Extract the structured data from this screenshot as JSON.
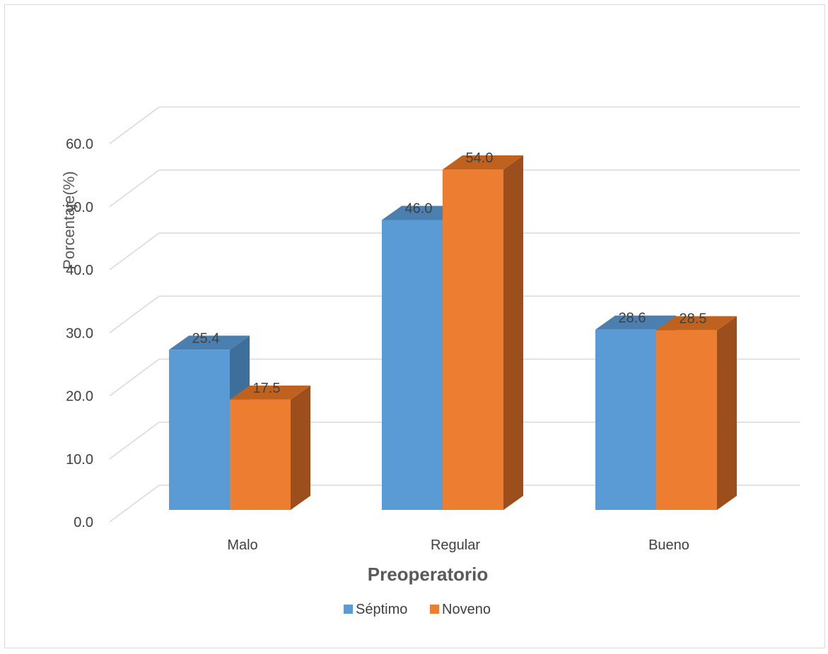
{
  "chart_data": {
    "type": "bar",
    "title": "",
    "xlabel": "Preoperatorio",
    "ylabel": "Porcentaje(%)",
    "categories": [
      "Malo",
      "Regular",
      "Bueno"
    ],
    "series": [
      {
        "name": "Séptimo",
        "values": [
          25.4,
          46.0,
          28.6
        ],
        "value_labels": [
          "25.4",
          "46.0",
          "28.6"
        ],
        "color": "#5b9bd5",
        "side_color": "#3e6f9a",
        "top_color": "#4a7fb0"
      },
      {
        "name": "Noveno",
        "values": [
          17.5,
          54.0,
          28.5
        ],
        "value_labels": [
          "17.5",
          "54.0",
          "28.5"
        ],
        "color": "#ed7d31",
        "side_color": "#9c4f1c",
        "top_color": "#c0621f"
      }
    ],
    "ylim": [
      0,
      60
    ],
    "yticks": [
      "0.0",
      "10.0",
      "20.0",
      "30.0",
      "40.0",
      "50.0",
      "60.0"
    ],
    "grid": true,
    "style": "3d-clustered-column",
    "legend_position": "bottom"
  }
}
